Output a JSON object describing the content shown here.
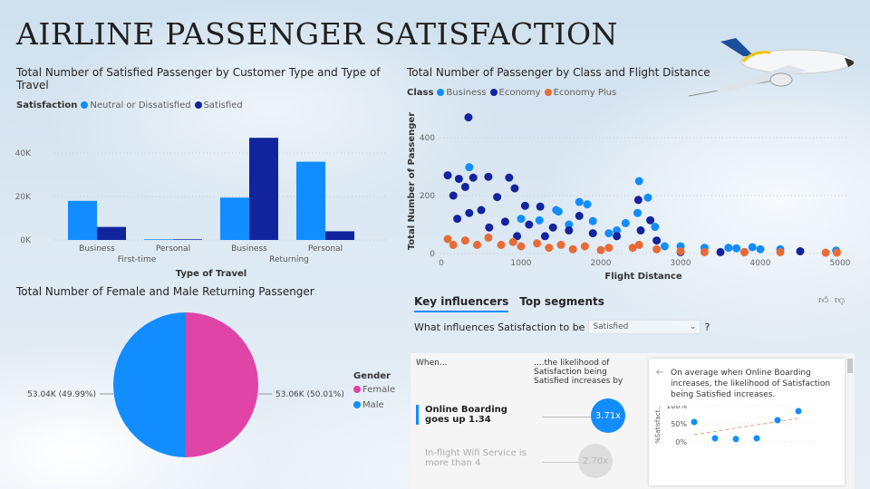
{
  "title": "AIRLINE PASSENGER SATISFACTION",
  "colors": {
    "neutral": "#118dff",
    "satisfied": "#12239e",
    "business": "#118dff",
    "economy": "#12239e",
    "economy_plus": "#e66c37",
    "female": "#e044a7",
    "male": "#118dff"
  },
  "bar_chart": {
    "title": "Total Number of Satisfied Passenger by Customer Type and Type of Travel",
    "legend_title": "Satisfaction",
    "xlabel": "Type of Travel"
  },
  "scatter_chart": {
    "title": "Total Number of Passenger by Class and Flight Distance",
    "legend_title": "Class"
  },
  "pie_chart": {
    "title": "Total Number of Female and Male Returning Passenger",
    "legend_title": "Gender"
  },
  "chart_data": [
    {
      "type": "bar",
      "title": "Total Number of Satisfied Passenger by Customer Type and Type of Travel",
      "xlabel": "Type of Travel",
      "ylabel": "",
      "ylim": [
        0,
        50000
      ],
      "yticks": [
        "0K",
        "20K",
        "40K"
      ],
      "grid": true,
      "legend": "top-left",
      "groups": [
        "First-time",
        "First-time",
        "Returning",
        "Returning"
      ],
      "categories": [
        "Business",
        "Personal",
        "Business",
        "Personal"
      ],
      "series": [
        {
          "name": "Neutral or Dissatisfied",
          "values": [
            18000,
            300,
            19500,
            36000
          ]
        },
        {
          "name": "Satisfied",
          "values": [
            6000,
            300,
            47000,
            4000
          ]
        }
      ]
    },
    {
      "type": "scatter",
      "title": "Total Number of Passenger by Class and Flight Distance",
      "xlabel": "Flight Distance",
      "ylabel": "Total Number of Passenger",
      "xlim": [
        0,
        5000
      ],
      "ylim": [
        0,
        450
      ],
      "xticks": [
        "0",
        "1000",
        "2000",
        "3000",
        "4000",
        "5000"
      ],
      "yticks": [
        "0",
        "200",
        "400"
      ],
      "legend": "top-left",
      "series": [
        {
          "name": "Business",
          "points": [
            [
              350,
              298
            ],
            [
              1730,
              178
            ],
            [
              1830,
              170
            ],
            [
              2480,
              250
            ],
            [
              2590,
              193
            ],
            [
              1440,
              150
            ],
            [
              1470,
              145
            ],
            [
              1230,
              115
            ],
            [
              1900,
              112
            ],
            [
              2310,
              105
            ],
            [
              2460,
              140
            ],
            [
              2680,
              92
            ],
            [
              2200,
              80
            ],
            [
              2800,
              25
            ],
            [
              3000,
              25
            ],
            [
              3300,
              20
            ],
            [
              3600,
              20
            ],
            [
              3900,
              22
            ],
            [
              4000,
              15
            ],
            [
              4250,
              15
            ],
            [
              4950,
              10
            ],
            [
              1600,
              100
            ],
            [
              2100,
              70
            ],
            [
              1000,
              120
            ],
            [
              3700,
              18
            ]
          ]
        },
        {
          "name": "Economy",
          "points": [
            [
              340,
              470
            ],
            [
              80,
              270
            ],
            [
              220,
              258
            ],
            [
              400,
              262
            ],
            [
              590,
              265
            ],
            [
              850,
              262
            ],
            [
              920,
              225
            ],
            [
              300,
              230
            ],
            [
              150,
              200
            ],
            [
              700,
              195
            ],
            [
              1050,
              165
            ],
            [
              1240,
              162
            ],
            [
              1730,
              130
            ],
            [
              2470,
              185
            ],
            [
              2620,
              115
            ],
            [
              500,
              150
            ],
            [
              200,
              120
            ],
            [
              800,
              110
            ],
            [
              1100,
              100
            ],
            [
              1400,
              90
            ],
            [
              1600,
              80
            ],
            [
              1900,
              70
            ],
            [
              2200,
              60
            ],
            [
              2500,
              80
            ],
            [
              2700,
              45
            ],
            [
              3000,
              5
            ],
            [
              3500,
              5
            ],
            [
              3800,
              5
            ],
            [
              4500,
              8
            ],
            [
              600,
              90
            ],
            [
              350,
              140
            ],
            [
              950,
              60
            ],
            [
              1300,
              60
            ]
          ]
        },
        {
          "name": "Economy Plus",
          "points": [
            [
              80,
              50
            ],
            [
              300,
              45
            ],
            [
              590,
              55
            ],
            [
              900,
              40
            ],
            [
              1200,
              35
            ],
            [
              1500,
              30
            ],
            [
              1800,
              25
            ],
            [
              2100,
              20
            ],
            [
              2400,
              20
            ],
            [
              2480,
              30
            ],
            [
              2700,
              15
            ],
            [
              3000,
              8
            ],
            [
              3300,
              5
            ],
            [
              3800,
              5
            ],
            [
              4250,
              5
            ],
            [
              4820,
              3
            ],
            [
              4960,
              3
            ],
            [
              150,
              30
            ],
            [
              450,
              30
            ],
            [
              750,
              30
            ],
            [
              1000,
              25
            ],
            [
              1350,
              20
            ],
            [
              1650,
              15
            ],
            [
              2000,
              12
            ]
          ]
        }
      ]
    },
    {
      "type": "pie",
      "title": "Total Number of Female and Male Returning Passenger",
      "legend": "right",
      "slices": [
        {
          "name": "Female",
          "value": 53060,
          "label": "53.06K (50.01%)"
        },
        {
          "name": "Male",
          "value": 53040,
          "label": "53.04K (49.99%)"
        }
      ]
    },
    {
      "type": "scatter",
      "title": "",
      "ylabel": "%Satisfact...",
      "yticks": [
        "0%",
        "50%",
        "100%"
      ],
      "ylim": [
        0,
        100
      ],
      "points": [
        [
          1,
          55
        ],
        [
          2,
          10
        ],
        [
          3,
          8
        ],
        [
          4,
          10
        ],
        [
          5,
          60
        ],
        [
          6,
          85
        ]
      ],
      "trend": true
    }
  ],
  "key_influencers": {
    "tabs": [
      "Key influencers",
      "Top segments"
    ],
    "question_prefix": "What influences Satisfaction to be",
    "question_value": "Satisfied",
    "question_suffix": "?",
    "col_when": "When...",
    "col_likelihood": "....the likelihood of Satisfaction being Satisfied increases by",
    "items": [
      {
        "label": "Online Boarding goes up 1.34",
        "value": "3.71x"
      },
      {
        "label": "In-flight Wifi Service is more than 4",
        "value": "2.70x"
      }
    ],
    "detail_text": "On average when Online Boarding increases, the likelihood of Satisfaction being Satisfied increases."
  }
}
